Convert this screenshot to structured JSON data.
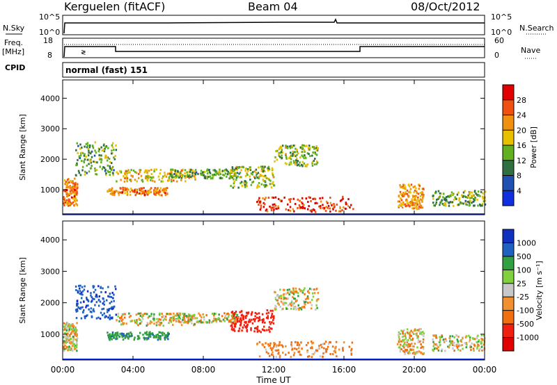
{
  "header": {
    "station": "Kerguelen (fitACF)",
    "beam": "Beam 04",
    "date": "08/Oct/2012"
  },
  "noise_panel": {
    "left_label": "N.Sky",
    "right_label": "N.Search",
    "left_ticks": [
      "10^5",
      "10^0"
    ],
    "right_ticks": [
      "10^5",
      "10^0"
    ]
  },
  "freq_panel": {
    "left_label_1": "Freq.",
    "left_label_2": "[MHz]",
    "left_ticks": [
      "18",
      "8"
    ],
    "right_label": "Nave",
    "right_ticks": [
      "60",
      "0"
    ]
  },
  "cpid": {
    "label": "CPID",
    "value": "normal (fast) 151"
  },
  "power_panel": {
    "ylabel": "Slant Range [km]",
    "yticks": [
      "4000",
      "3000",
      "2000",
      "1000"
    ],
    "colorbar_label": "Power [dB]",
    "colorbar_ticks": [
      "28",
      "24",
      "20",
      "16",
      "12",
      "8",
      "4"
    ],
    "colors": [
      "#e00000",
      "#f05010",
      "#f09010",
      "#e8c000",
      "#60b020",
      "#307040",
      "#2050b0",
      "#1030e0"
    ]
  },
  "velocity_panel": {
    "ylabel": "Slant Range [km]",
    "yticks": [
      "4000",
      "3000",
      "2000",
      "1000"
    ],
    "colorbar_label": "Velocity [m s⁻¹]",
    "colorbar_ticks": [
      "1000",
      "500",
      "100",
      "25",
      "-25",
      "-100",
      "-500",
      "-1000"
    ],
    "colors": [
      "#1030c0",
      "#2060c0",
      "#30a040",
      "#80d040",
      "#c8c8c8",
      "#f09030",
      "#f07010",
      "#f02010",
      "#e00000"
    ]
  },
  "xaxis": {
    "label": "Time UT",
    "ticks": [
      "00:00",
      "04:00",
      "08:00",
      "12:00",
      "16:00",
      "20:00",
      "00:00"
    ]
  },
  "chart_data": {
    "type": "heatmap",
    "title": "Kerguelen (fitACF) Beam 04 08/Oct/2012",
    "xlabel": "Time UT",
    "ylabel": "Slant Range [km]",
    "xlim": [
      0,
      24
    ],
    "ylim": [
      180,
      4600
    ],
    "power_range_db": [
      0,
      30
    ],
    "velocity_range_ms": [
      -1000,
      1000
    ],
    "freq_schedule_mhz": [
      {
        "t0": 0,
        "t1": 2.9,
        "freq": 12
      },
      {
        "t0": 2.9,
        "t1": 17.0,
        "freq": 10
      },
      {
        "t0": 17.0,
        "t1": 24,
        "freq": 12
      }
    ],
    "scatter_regions": [
      {
        "t0": 0.0,
        "t1": 0.8,
        "r0": 500,
        "r1": 1400,
        "power": 22,
        "velocity": 0
      },
      {
        "t0": 0.7,
        "t1": 3.0,
        "r0": 1500,
        "r1": 2600,
        "power": 12,
        "velocity": 900
      },
      {
        "t0": 2.5,
        "t1": 6.0,
        "r0": 850,
        "r1": 1100,
        "power": 22,
        "velocity": 400
      },
      {
        "t0": 3.0,
        "t1": 7.5,
        "r0": 1300,
        "r1": 1700,
        "power": 18,
        "velocity": 0
      },
      {
        "t0": 6.0,
        "t1": 10.0,
        "r0": 1400,
        "r1": 1700,
        "power": 12,
        "velocity": 0
      },
      {
        "t0": 9.5,
        "t1": 12.0,
        "r0": 1100,
        "r1": 1800,
        "power": 14,
        "velocity": -800
      },
      {
        "t0": 12.0,
        "t1": 14.5,
        "r0": 1800,
        "r1": 2500,
        "power": 14,
        "velocity": 0
      },
      {
        "t0": 11.0,
        "t1": 16.5,
        "r0": 300,
        "r1": 800,
        "power": 26,
        "velocity": -150
      },
      {
        "t0": 19.0,
        "t1": 20.5,
        "r0": 400,
        "r1": 1200,
        "power": 20,
        "velocity": -50
      },
      {
        "t0": 21.0,
        "t1": 24.0,
        "r0": 500,
        "r1": 1000,
        "power": 12,
        "velocity": 0
      }
    ]
  }
}
